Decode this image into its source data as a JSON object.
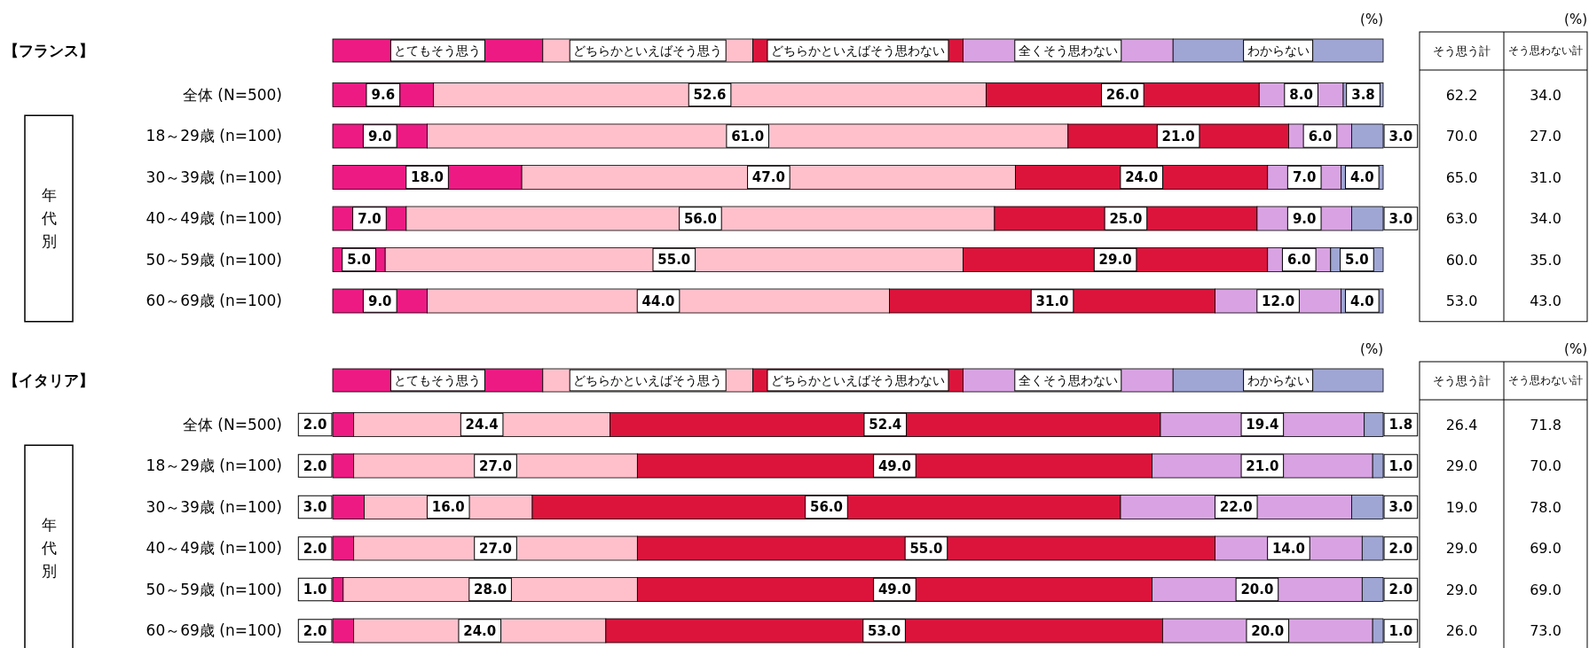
{
  "chart_data": [
    {
      "type": "bar",
      "orientation": "horizontal",
      "stacked": true,
      "title": "【フランス】",
      "categories": [
        "全体 (N=500)",
        "18～29歳 (n=100)",
        "30～39歳 (n=100)",
        "40～49歳 (n=100)",
        "50～59歳 (n=100)",
        "60～69歳 (n=100)"
      ],
      "series": [
        {
          "name": "とてもそう思う",
          "color": "#ee1a84",
          "values": [
            9.6,
            9.0,
            18.0,
            7.0,
            5.0,
            9.0
          ],
          "value_labels": [
            "9.6",
            "9.0",
            "18.0",
            "7.0",
            "5.0",
            "9.0"
          ]
        },
        {
          "name": "どちらかといえばそう思う",
          "color": "#ffc0cb",
          "values": [
            52.6,
            61.0,
            47.0,
            56.0,
            55.0,
            44.0
          ],
          "value_labels": [
            "52.6",
            "61.0",
            "47.0",
            "56.0",
            "55.0",
            "44.0"
          ]
        },
        {
          "name": "どちらかといえばそう思わない",
          "color": "#dc143c",
          "values": [
            26.0,
            21.0,
            24.0,
            25.0,
            29.0,
            31.0
          ],
          "value_labels": [
            "26.0",
            "21.0",
            "24.0",
            "25.0",
            "29.0",
            "31.0"
          ]
        },
        {
          "name": "全くそう思わない",
          "color": "#d9a3e3",
          "values": [
            8.0,
            6.0,
            7.0,
            9.0,
            6.0,
            12.0
          ],
          "value_labels": [
            "8.0",
            "6.0",
            "7.0",
            "9.0",
            "6.0",
            "12.0"
          ]
        },
        {
          "name": "わからない",
          "color": "#9fa6d4",
          "values": [
            3.8,
            3.0,
            4.0,
            3.0,
            5.0,
            4.0
          ],
          "value_labels": [
            "3.8",
            "3.0",
            "4.0",
            "3.0",
            "5.0",
            "4.0"
          ]
        }
      ],
      "xlim": [
        0,
        100
      ],
      "tick_labels": "y",
      "legend": "top",
      "annotations": [
        "(%)",
        "(%)",
        "そう思う計",
        "そう思わない計",
        "年代別",
        "62.2",
        "34.0",
        "70.0",
        "27.0",
        "65.0",
        "31.0",
        "63.0",
        "34.0",
        "60.0",
        "35.0",
        "53.0",
        "43.0"
      ]
    },
    {
      "type": "bar",
      "orientation": "horizontal",
      "stacked": true,
      "title": "【イタリア】",
      "categories": [
        "全体 (N=500)",
        "18～29歳 (n=100)",
        "30～39歳 (n=100)",
        "40～49歳 (n=100)",
        "50～59歳 (n=100)",
        "60～69歳 (n=100)"
      ],
      "series": [
        {
          "name": "とてもそう思う",
          "color": "#ee1a84",
          "values": [
            2.0,
            2.0,
            3.0,
            2.0,
            1.0,
            2.0
          ],
          "value_labels": [
            "2.0",
            "2.0",
            "3.0",
            "2.0",
            "1.0",
            "2.0"
          ]
        },
        {
          "name": "どちらかといえばそう思う",
          "color": "#ffc0cb",
          "values": [
            24.4,
            27.0,
            16.0,
            27.0,
            28.0,
            24.0
          ],
          "value_labels": [
            "24.4",
            "27.0",
            "16.0",
            "27.0",
            "28.0",
            "24.0"
          ]
        },
        {
          "name": "どちらかといえばそう思わない",
          "color": "#dc143c",
          "values": [
            52.4,
            49.0,
            56.0,
            55.0,
            49.0,
            53.0
          ],
          "value_labels": [
            "52.4",
            "49.0",
            "56.0",
            "55.0",
            "49.0",
            "53.0"
          ]
        },
        {
          "name": "全くそう思わない",
          "color": "#d9a3e3",
          "values": [
            19.4,
            21.0,
            22.0,
            14.0,
            20.0,
            20.0
          ],
          "value_labels": [
            "19.4",
            "21.0",
            "22.0",
            "14.0",
            "20.0",
            "20.0"
          ]
        },
        {
          "name": "わからない",
          "color": "#9fa6d4",
          "values": [
            1.8,
            1.0,
            3.0,
            2.0,
            2.0,
            1.0
          ],
          "value_labels": [
            "1.8",
            "1.0",
            "3.0",
            "2.0",
            "2.0",
            "1.0"
          ]
        }
      ],
      "xlim": [
        0,
        100
      ],
      "tick_labels": "y",
      "legend": "top",
      "annotations": [
        "(%)",
        "(%)",
        "そう思う計",
        "そう思わない計",
        "年代別",
        "26.4",
        "71.8",
        "29.0",
        "70.0",
        "19.0",
        "78.0",
        "29.0",
        "69.0",
        "29.0",
        "69.0",
        "26.0",
        "73.0"
      ]
    }
  ]
}
